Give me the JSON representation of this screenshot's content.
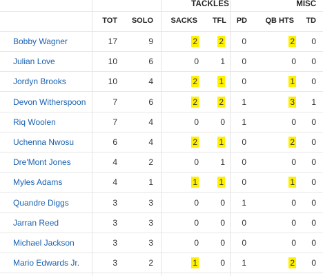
{
  "groups": {
    "tackles": "TACKLES",
    "misc": "MISC"
  },
  "headers": [
    "TOT",
    "SOLO",
    "SACKS",
    "TFL",
    "PD",
    "QB HTS",
    "TD"
  ],
  "highlight_color": "#ffef00",
  "link_color": "#1a62b0",
  "players": [
    {
      "name": "Bobby Wagner",
      "tot": "17",
      "solo": "9",
      "sacks": "2",
      "tfl": "2",
      "pd": "0",
      "qbhts": "2",
      "td": "0"
    },
    {
      "name": "Julian Love",
      "tot": "10",
      "solo": "6",
      "sacks": "0",
      "tfl": "1",
      "pd": "0",
      "qbhts": "0",
      "td": "0"
    },
    {
      "name": "Jordyn Brooks",
      "tot": "10",
      "solo": "4",
      "sacks": "2",
      "tfl": "1",
      "pd": "0",
      "qbhts": "1",
      "td": "0"
    },
    {
      "name": "Devon Witherspoon",
      "tot": "7",
      "solo": "6",
      "sacks": "2",
      "tfl": "2",
      "pd": "1",
      "qbhts": "3",
      "td": "1"
    },
    {
      "name": "Riq Woolen",
      "tot": "7",
      "solo": "4",
      "sacks": "0",
      "tfl": "0",
      "pd": "1",
      "qbhts": "0",
      "td": "0"
    },
    {
      "name": "Uchenna Nwosu",
      "tot": "6",
      "solo": "4",
      "sacks": "2",
      "tfl": "1",
      "pd": "0",
      "qbhts": "2",
      "td": "0"
    },
    {
      "name": "Dre'Mont Jones",
      "tot": "4",
      "solo": "2",
      "sacks": "0",
      "tfl": "1",
      "pd": "0",
      "qbhts": "0",
      "td": "0"
    },
    {
      "name": "Myles Adams",
      "tot": "4",
      "solo": "1",
      "sacks": "1",
      "tfl": "1",
      "pd": "0",
      "qbhts": "1",
      "td": "0"
    },
    {
      "name": "Quandre Diggs",
      "tot": "3",
      "solo": "3",
      "sacks": "0",
      "tfl": "0",
      "pd": "1",
      "qbhts": "0",
      "td": "0"
    },
    {
      "name": "Jarran Reed",
      "tot": "3",
      "solo": "3",
      "sacks": "0",
      "tfl": "0",
      "pd": "0",
      "qbhts": "0",
      "td": "0"
    },
    {
      "name": "Michael Jackson",
      "tot": "3",
      "solo": "3",
      "sacks": "0",
      "tfl": "0",
      "pd": "0",
      "qbhts": "0",
      "td": "0"
    },
    {
      "name": "Mario Edwards Jr.",
      "tot": "3",
      "solo": "2",
      "sacks": "1",
      "tfl": "0",
      "pd": "1",
      "qbhts": "2",
      "td": "0"
    }
  ],
  "highlighted": [
    [
      "sacks",
      "tfl",
      "qbhts"
    ],
    [],
    [
      "sacks",
      "tfl",
      "qbhts"
    ],
    [
      "sacks",
      "tfl",
      "qbhts"
    ],
    [],
    [
      "sacks",
      "tfl",
      "qbhts"
    ],
    [],
    [
      "sacks",
      "tfl",
      "qbhts"
    ],
    [],
    [],
    [],
    [
      "sacks",
      "qbhts"
    ]
  ]
}
